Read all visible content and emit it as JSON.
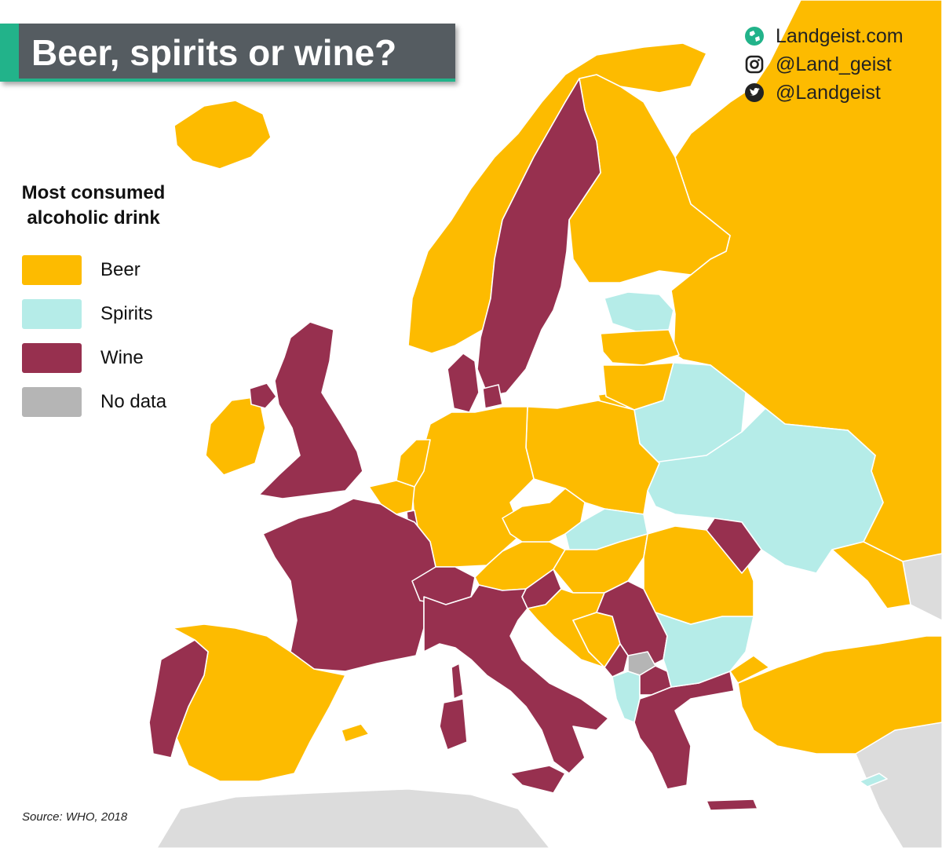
{
  "title": "Beer, spirits or wine?",
  "branding": {
    "website": "Landgeist.com",
    "instagram": "@Land_geist",
    "twitter": "@Landgeist",
    "accent_color": "#22b38a"
  },
  "legend": {
    "title_line1": "Most consumed",
    "title_line2": "alcoholic drink",
    "items": [
      {
        "label": "Beer",
        "color": "#fdbb00"
      },
      {
        "label": "Spirits",
        "color": "#b5ece8"
      },
      {
        "label": "Wine",
        "color": "#97304f"
      },
      {
        "label": "No data",
        "color": "#b5b5b5"
      }
    ]
  },
  "source": "Source: WHO, 2018",
  "colors": {
    "beer": "#fdbb00",
    "spirits": "#b5ece8",
    "wine": "#97304f",
    "no_data": "#b5b5b5",
    "outside": "#dcdcdc",
    "sea": "#ffffff"
  },
  "countries": {
    "russia": "beer",
    "norway": "beer",
    "sweden": "wine",
    "finland": "beer",
    "iceland": "beer",
    "ireland": "beer",
    "united_kingdom": "wine",
    "denmark": "wine",
    "estonia": "spirits",
    "latvia": "beer",
    "lithuania": "beer",
    "belarus": "spirits",
    "ukraine": "spirits",
    "poland": "beer",
    "germany": "beer",
    "netherlands": "beer",
    "belgium": "beer",
    "luxembourg": "wine",
    "france": "wine",
    "spain": "beer",
    "portugal": "wine",
    "switzerland": "wine",
    "austria": "beer",
    "czechia": "beer",
    "slovakia": "spirits",
    "hungary": "beer",
    "slovenia": "wine",
    "croatia": "beer",
    "bosnia_and_herzegovina": "beer",
    "serbia": "wine",
    "montenegro": "wine",
    "kosovo": "no_data",
    "albania": "spirits",
    "north_macedonia": "wine",
    "greece": "wine",
    "bulgaria": "spirits",
    "romania": "beer",
    "moldova": "wine",
    "italy": "wine",
    "turkey": "beer",
    "cyprus": "spirits",
    "georgia": "beer"
  }
}
